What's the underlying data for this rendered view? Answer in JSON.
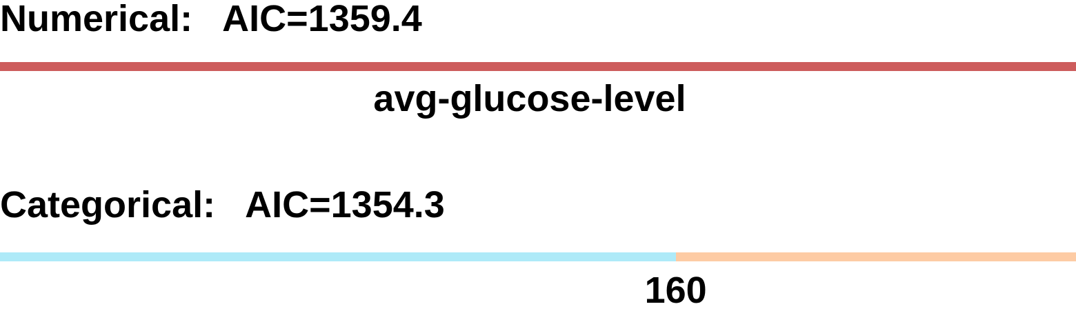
{
  "numerical": {
    "label": "Numerical:",
    "aic": "AIC=1359.4",
    "bar_color": "#cd5c5c"
  },
  "feature": {
    "name": "avg-glucose-level"
  },
  "categorical": {
    "label": "Categorical:",
    "aic": "AIC=1354.3",
    "cut_value": "160",
    "cut_fraction": 0.628,
    "segments": [
      {
        "name": "below-cut",
        "color": "#aeeaf8"
      },
      {
        "name": "above-cut",
        "color": "#fdcba4"
      }
    ]
  }
}
